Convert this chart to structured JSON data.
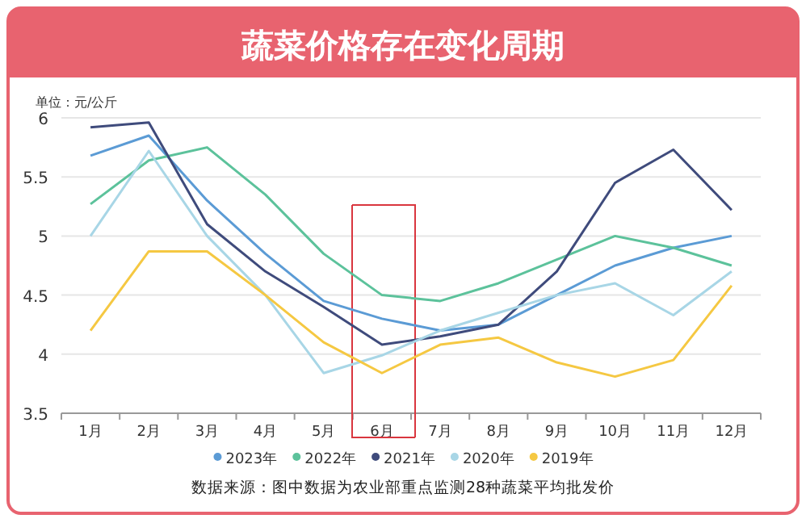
{
  "chart_data": {
    "type": "line",
    "title": "蔬菜价格存在变化周期",
    "ylabel": "单位：元/公斤",
    "categories": [
      "1月",
      "2月",
      "3月",
      "4月",
      "5月",
      "6月",
      "7月",
      "8月",
      "9月",
      "10月",
      "11月",
      "12月"
    ],
    "series": [
      {
        "name": "2023年",
        "color": "#5b9bd5",
        "values": [
          5.68,
          5.85,
          5.3,
          4.85,
          4.45,
          4.3,
          4.2,
          4.25,
          4.5,
          4.75,
          4.9,
          5.0
        ]
      },
      {
        "name": "2022年",
        "color": "#5cc29b",
        "values": [
          5.27,
          5.64,
          5.75,
          5.35,
          4.85,
          4.5,
          4.45,
          4.6,
          4.8,
          5.0,
          4.9,
          4.75
        ]
      },
      {
        "name": "2021年",
        "color": "#3f4b7c",
        "values": [
          5.92,
          5.96,
          5.1,
          4.7,
          4.4,
          4.08,
          4.15,
          4.25,
          4.7,
          5.45,
          5.73,
          5.22
        ]
      },
      {
        "name": "2020年",
        "color": "#a8d6e6",
        "values": [
          5.0,
          5.72,
          5.0,
          4.5,
          3.84,
          3.99,
          4.2,
          4.35,
          4.5,
          4.6,
          4.33,
          4.7
        ]
      },
      {
        "name": "2019年",
        "color": "#f5c842",
        "values": [
          4.2,
          4.87,
          4.87,
          4.5,
          4.1,
          3.84,
          4.08,
          4.14,
          3.93,
          3.81,
          3.95,
          4.58
        ]
      }
    ],
    "ylim": [
      3.5,
      6
    ],
    "yticks": [
      3.5,
      4,
      4.5,
      5,
      5.5,
      6
    ],
    "grid": "y",
    "legend": "bottom",
    "annotations": [
      "数据来源：图中数据为农业部重点监测28种蔬菜平均批发价"
    ]
  }
}
